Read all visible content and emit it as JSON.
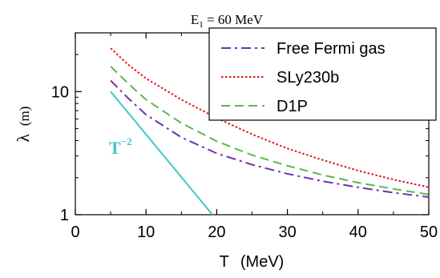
{
  "chart_data": {
    "type": "line",
    "title": "E",
    "title_subscript": "1",
    "title_rest": " = 60 MeV",
    "xlabel_symbol": "T",
    "xlabel_unit": "(MeV)",
    "ylabel_symbol": "λ",
    "ylabel_unit": "(m)",
    "xlim": [
      0,
      50
    ],
    "ylim": [
      1,
      30
    ],
    "y_scale": "log",
    "grid": false,
    "legend_position": "top-right",
    "x_ticks": [
      0,
      10,
      20,
      30,
      40,
      50
    ],
    "x_tick_labels": [
      "0",
      "10",
      "20",
      "30",
      "40",
      "50"
    ],
    "y_ticks": [
      1,
      10
    ],
    "y_tick_labels": [
      "1",
      "10"
    ],
    "series": [
      {
        "name": "Free Fermi gas",
        "color": "#7030b0",
        "dash": "dashdot",
        "x": [
          5,
          7.5,
          10,
          15,
          20,
          25,
          30,
          35,
          40,
          45,
          50
        ],
        "y": [
          12.3,
          8.8,
          6.5,
          4.25,
          3.15,
          2.55,
          2.15,
          1.87,
          1.67,
          1.51,
          1.39
        ]
      },
      {
        "name": "SLy230b",
        "color": "#e0141e",
        "dash": "dotted",
        "x": [
          5,
          7.5,
          10,
          15,
          20,
          25,
          30,
          35,
          40,
          45,
          50
        ],
        "y": [
          22.5,
          16.5,
          12.8,
          8.6,
          6.1,
          4.5,
          3.45,
          2.78,
          2.28,
          1.93,
          1.67
        ]
      },
      {
        "name": "D1P",
        "color": "#5cb848",
        "dash": "dashed",
        "x": [
          5,
          7.5,
          10,
          15,
          20,
          25,
          30,
          35,
          40,
          45,
          50
        ],
        "y": [
          16.0,
          11.6,
          8.6,
          5.55,
          3.95,
          3.05,
          2.5,
          2.1,
          1.82,
          1.62,
          1.46
        ]
      }
    ],
    "reference_line": {
      "label_base": "T",
      "label_exp": "−2",
      "color": "#40c8c8",
      "x": [
        5,
        19.4
      ],
      "y": [
        10,
        1.0
      ]
    }
  }
}
